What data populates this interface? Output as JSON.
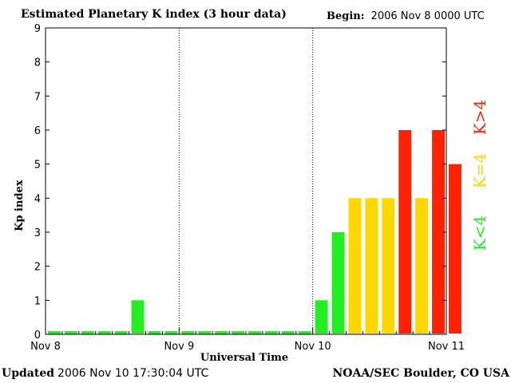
{
  "header": {
    "title": "Estimated Planetary K index (3 hour data)",
    "begin_label": "Begin:",
    "begin_value": "2006 Nov 8 0000 UTC"
  },
  "footer": {
    "updated_label": "Updated",
    "updated_value": "2006 Nov 10 17:30:04 UTC",
    "source": "NOAA/SEC Boulder, CO USA"
  },
  "colors": {
    "low": "#22ee22",
    "mid": "#ffd700",
    "high": "#ff2200",
    "axis": "#000000"
  },
  "legend": [
    {
      "label": "K<4",
      "color": "#22ee22"
    },
    {
      "label": "K=4",
      "color": "#ffd700"
    },
    {
      "label": "K>4",
      "color": "#ff2200"
    }
  ],
  "chart_data": {
    "type": "bar",
    "xlabel": "Universal Time",
    "ylabel": "Kp index",
    "ylim": [
      0,
      9
    ],
    "yticks": [
      0,
      1,
      2,
      3,
      4,
      5,
      6,
      7,
      8,
      9
    ],
    "xticks": [
      "Nov 8",
      "Nov 9",
      "Nov 10",
      "Nov 11"
    ],
    "bins_per_day": 8,
    "values": [
      0,
      0,
      0,
      0,
      0,
      1,
      0,
      0,
      0,
      0,
      0,
      0,
      0,
      0,
      0,
      0,
      1,
      3,
      4,
      4,
      4,
      6,
      4,
      6,
      5
    ],
    "grid": "vertical dotted lines at day boundaries"
  }
}
